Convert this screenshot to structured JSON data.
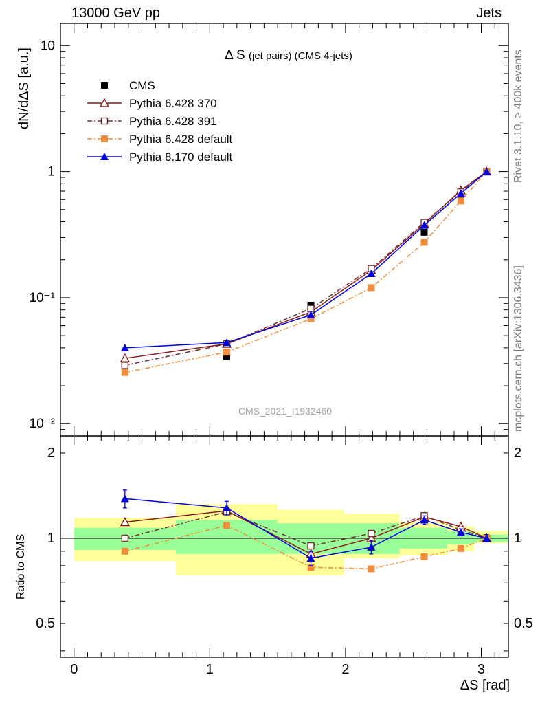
{
  "header": {
    "left": "13000 GeV pp",
    "right": "Jets"
  },
  "side_labels": {
    "rivet": "Rivet 3.1.10, ≥ 400k events",
    "mcplots": "mcplots.cern.ch [arXiv:1306.3436]"
  },
  "watermark": "CMS_2021_I1932460",
  "chart_data": [
    {
      "type": "line",
      "panel": "main",
      "title": "Δ S (jet pairs) (CMS 4-jets)",
      "ylabel": "dN/dΔS [a.u.]",
      "xlim": [
        -0.1,
        3.2
      ],
      "ylim": [
        0.008,
        15
      ],
      "yscale": "log",
      "ytick_labels": [
        "10⁻²",
        "10⁻¹",
        "1",
        "10"
      ],
      "legend_position": "top-left",
      "x": [
        0.375,
        1.125,
        1.745,
        2.19,
        2.58,
        2.85,
        3.04
      ],
      "series": [
        {
          "name": "CMS",
          "color": "#000000",
          "marker": "square",
          "values": [
            0.029,
            0.034,
            0.087,
            0.165,
            0.33,
            0.66,
            1.0
          ]
        },
        {
          "name": "Pythia 6.428 370",
          "color": "#8b1a1a",
          "marker": "triangle-open",
          "dash": "",
          "values": [
            0.033,
            0.043,
            0.077,
            0.165,
            0.385,
            0.71,
            1.0
          ]
        },
        {
          "name": "Pythia 6.428 391",
          "color": "#6b2f2f",
          "marker": "square-open",
          "dash": "7,3,2,3",
          "values": [
            0.029,
            0.043,
            0.082,
            0.17,
            0.395,
            0.69,
            1.0
          ]
        },
        {
          "name": "Pythia 6.428 default",
          "color": "#f28c3a",
          "marker": "square",
          "dash": "7,3,2,3",
          "values": [
            0.0255,
            0.037,
            0.068,
            0.12,
            0.275,
            0.585,
            1.0
          ]
        },
        {
          "name": "Pythia 8.170 default",
          "color": "#0000dd",
          "marker": "triangle",
          "dash": "",
          "values": [
            0.04,
            0.044,
            0.073,
            0.155,
            0.375,
            0.67,
            1.0
          ]
        }
      ]
    },
    {
      "type": "line",
      "panel": "ratio",
      "ylabel": "Ratio to CMS",
      "xlabel": "ΔS [rad]",
      "xlim": [
        -0.1,
        3.2
      ],
      "ylim": [
        0.38,
        2.3
      ],
      "yscale": "log",
      "xtick_labels": [
        "0",
        "1",
        "2",
        "3"
      ],
      "ytick_labels": [
        "0.5",
        "1",
        "2"
      ],
      "bands": {
        "edges": [
          0,
          0.75,
          1.5,
          1.99,
          2.4,
          2.75,
          2.95,
          3.2
        ],
        "yellow_low": [
          0.83,
          0.74,
          0.74,
          0.85,
          0.87,
          0.9,
          0.96
        ],
        "yellow_high": [
          1.18,
          1.32,
          1.26,
          1.22,
          1.14,
          1.1,
          1.06
        ],
        "green_low": [
          0.91,
          0.88,
          0.88,
          0.88,
          0.92,
          0.95,
          0.97
        ],
        "green_high": [
          1.09,
          1.16,
          1.13,
          1.13,
          1.09,
          1.06,
          1.03
        ]
      },
      "x": [
        0.375,
        1.125,
        1.745,
        2.19,
        2.58,
        2.85,
        3.04
      ],
      "series": [
        {
          "name": "Pythia 6.428 370",
          "color": "#8b1a1a",
          "marker": "triangle-open",
          "dash": "",
          "values": [
            1.14,
            1.25,
            0.88,
            1.0,
            1.19,
            1.1,
            1.0
          ]
        },
        {
          "name": "Pythia 6.428 391",
          "color": "#6b2f2f",
          "marker": "square-open",
          "dash": "7,3,2,3",
          "values": [
            1.0,
            1.24,
            0.94,
            1.04,
            1.2,
            1.07,
            1.0
          ]
        },
        {
          "name": "Pythia 6.428 default",
          "color": "#f28c3a",
          "marker": "square",
          "dash": "7,3,2,3",
          "values": [
            0.9,
            1.11,
            0.79,
            0.78,
            0.86,
            0.92,
            1.0
          ]
        },
        {
          "name": "Pythia 8.170 default",
          "color": "#0000dd",
          "marker": "triangle",
          "dash": "",
          "values": [
            1.38,
            1.28,
            0.85,
            0.93,
            1.16,
            1.05,
            1.0
          ],
          "errors": [
            0.1,
            0.07,
            0.05,
            0.05,
            0.04,
            0.03,
            0.03
          ]
        }
      ]
    }
  ]
}
